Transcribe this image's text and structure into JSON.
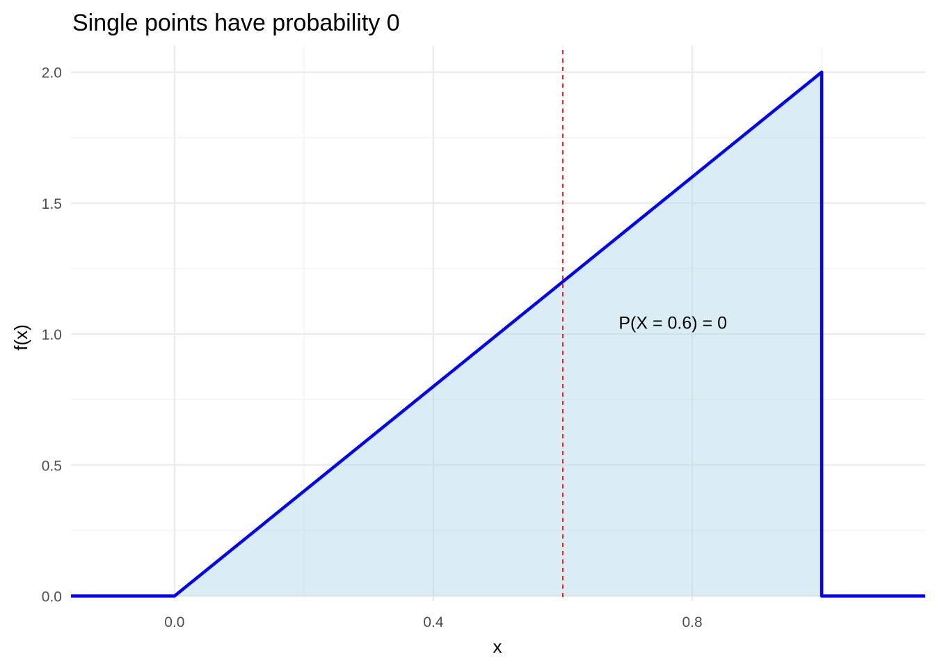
{
  "chart_data": {
    "type": "area",
    "title": "Single points have probability 0",
    "xlabel": "x",
    "ylabel": "f(x)",
    "xlim": [
      -0.16,
      1.16
    ],
    "ylim": [
      -0.02,
      2.1
    ],
    "x_ticks": [
      0.0,
      0.4,
      0.8
    ],
    "x_tick_labels": [
      "0.0",
      "0.4",
      "0.8"
    ],
    "x_minor_ticks": [
      0.2,
      0.6,
      1.0
    ],
    "y_ticks": [
      0.0,
      0.5,
      1.0,
      1.5,
      2.0
    ],
    "y_tick_labels": [
      "0.0",
      "0.5",
      "1.0",
      "1.5",
      "2.0"
    ],
    "y_minor_ticks": [
      0.25,
      0.75,
      1.25,
      1.75
    ],
    "grid": true,
    "series": [
      {
        "line_color": "#0000ff",
        "fill_color": "#add8e6",
        "points": [
          {
            "x": -0.16,
            "y": 0
          },
          {
            "x": 0.0,
            "y": 0
          },
          {
            "x": 1.0,
            "y": 2.0
          },
          {
            "x": 1.0,
            "y": 0
          },
          {
            "x": 1.16,
            "y": 0
          }
        ],
        "filled_interval": [
          0.0,
          1.0
        ]
      }
    ],
    "reference_line": {
      "x": 0.6,
      "color": "#ff0000",
      "style": "dashed"
    },
    "annotation": {
      "text": "P(X = 0.6) = 0",
      "x": 0.77,
      "y": 1.02
    }
  }
}
